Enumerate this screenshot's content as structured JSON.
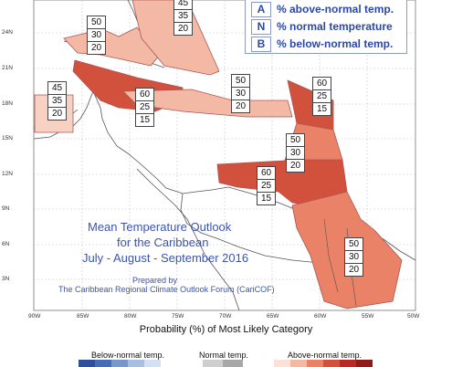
{
  "title": {
    "line1": "Mean Temperature Outlook",
    "line2": "for the Caribbean",
    "line3": "July - August - September 2016",
    "prepared1": "Prepared by",
    "prepared2": "The Caribbean Regional Climate Outlook Forum (CariCOF)"
  },
  "legend": {
    "items": [
      {
        "key": "A",
        "text": "% above-normal temp."
      },
      {
        "key": "N",
        "text": "% normal temperature"
      },
      {
        "key": "B",
        "text": "% below-normal temp."
      }
    ]
  },
  "probability_label": "Probability (%) of Most Likely Category",
  "categories": {
    "below": "Below-normal temp.",
    "normal": "Normal temp.",
    "above": "Above-normal temp."
  },
  "lon_labels": [
    "90W",
    "85W",
    "80W",
    "75W",
    "70W",
    "65W",
    "60W",
    "55W",
    "50W"
  ],
  "lat_labels": [
    "24N",
    "21N",
    "18N",
    "15N",
    "12N",
    "9N",
    "6N",
    "3N"
  ],
  "boxes": [
    {
      "id": "bahamas",
      "values": [
        "45",
        "35",
        "20"
      ]
    },
    {
      "id": "cuba-north",
      "values": [
        "50",
        "30",
        "20"
      ]
    },
    {
      "id": "belize",
      "values": [
        "45",
        "35",
        "20"
      ]
    },
    {
      "id": "jamaica",
      "values": [
        "60",
        "25",
        "15"
      ]
    },
    {
      "id": "hispaniola",
      "values": [
        "50",
        "30",
        "20"
      ]
    },
    {
      "id": "leeward",
      "values": [
        "60",
        "25",
        "15"
      ]
    },
    {
      "id": "windward",
      "values": [
        "50",
        "30",
        "20"
      ]
    },
    {
      "id": "southern",
      "values": [
        "60",
        "25",
        "15"
      ]
    },
    {
      "id": "guianas",
      "values": [
        "50",
        "30",
        "20"
      ]
    }
  ],
  "colors": {
    "strong": "#d2513d",
    "medium": "#e98266",
    "light": "#f3b9a5",
    "pale": "#f7d2c3",
    "blue_text": "#2b48a8"
  }
}
